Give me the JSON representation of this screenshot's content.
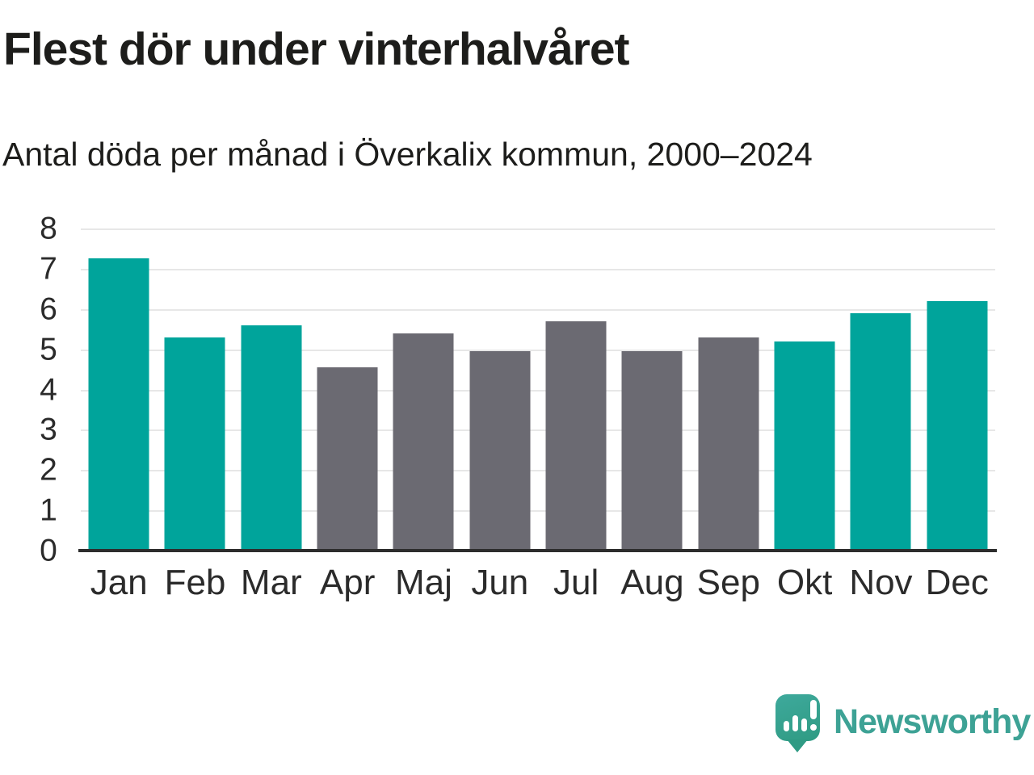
{
  "header": {
    "title": "Flest dör under vinterhalvåret",
    "subtitle": "Antal döda per månad i Överkalix kommun, 2000–2024"
  },
  "chart_data": {
    "type": "bar",
    "title": "Flest dör under vinterhalvåret",
    "subtitle": "Antal döda per månad i Överkalix kommun, 2000–2024",
    "categories": [
      "Jan",
      "Feb",
      "Mar",
      "Apr",
      "Maj",
      "Jun",
      "Jul",
      "Aug",
      "Sep",
      "Okt",
      "Nov",
      "Dec"
    ],
    "values": [
      7.25,
      5.3,
      5.6,
      4.55,
      5.4,
      4.95,
      5.7,
      4.95,
      5.3,
      5.2,
      5.9,
      6.2
    ],
    "bar_colors": [
      "#00A49B",
      "#00A49B",
      "#00A49B",
      "#6B6A72",
      "#6B6A72",
      "#6B6A72",
      "#6B6A72",
      "#6B6A72",
      "#6B6A72",
      "#00A49B",
      "#00A49B",
      "#00A49B"
    ],
    "color_meaning": {
      "winter_months": "#00A49B",
      "summer_months": "#6B6A72"
    },
    "xlabel": "",
    "ylabel": "",
    "ylim": [
      0,
      8
    ],
    "yticks": [
      0,
      1,
      2,
      3,
      4,
      5,
      6,
      7,
      8
    ],
    "ytick_labels": [
      "0",
      "1",
      "2",
      "3",
      "4",
      "5",
      "6",
      "7",
      "8"
    ],
    "grid": true,
    "legend": false
  },
  "footer": {
    "brand": "Newsworthy",
    "brand_color": "#3DA295",
    "logo_icon": "speech-bubble-bar-chart-exclamation-icon"
  }
}
